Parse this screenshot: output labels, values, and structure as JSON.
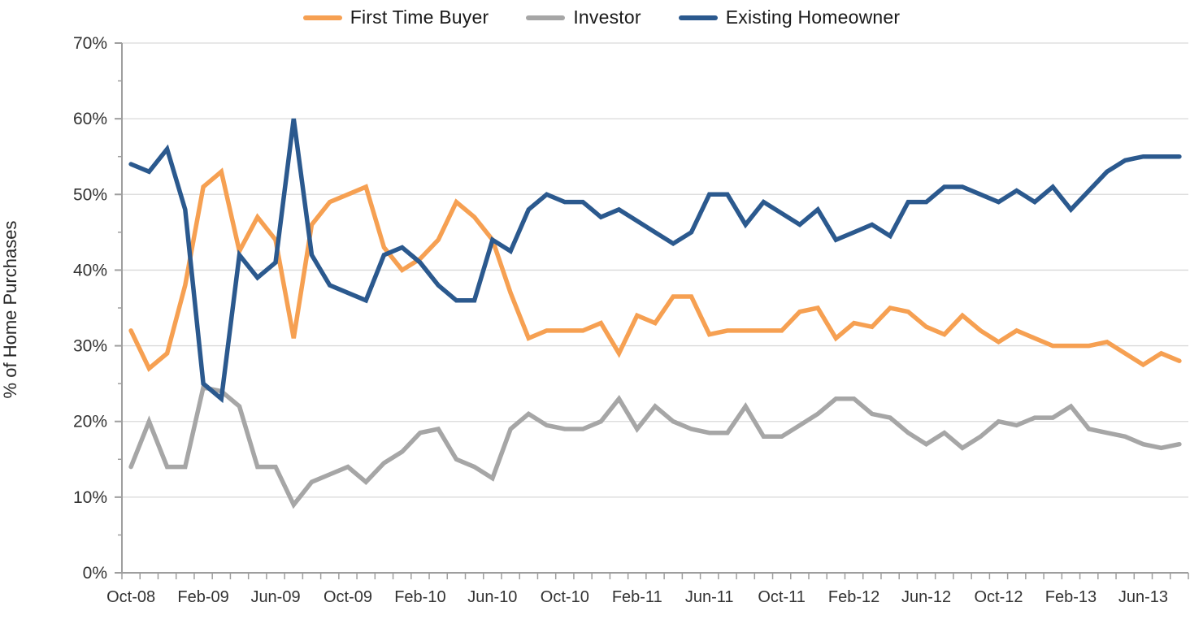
{
  "page": {
    "background": "#ffffff"
  },
  "y_axis_title": "% of Home Purchases",
  "chart_data": {
    "type": "line",
    "title": "",
    "xlabel": "",
    "ylabel": "% of Home Purchases",
    "ylim": [
      0,
      70
    ],
    "grid": "horizontal-only",
    "legend_position": "top-center",
    "gridline_color": "#D9D9D9",
    "axis_color": "#9E9E9E",
    "tick_label_color": "#333333",
    "y_tick_labels": [
      "0%",
      "10%",
      "20%",
      "30%",
      "40%",
      "50%",
      "60%",
      "70%"
    ],
    "x_tick_label_every": 4,
    "x_tick_labels_visible": [
      "Oct-08",
      "Feb-09",
      "Jun-09",
      "Oct-09",
      "Feb-10",
      "Jun-10",
      "Oct-10",
      "Feb-11",
      "Jun-11",
      "Oct-11",
      "Feb-12",
      "Jun-12",
      "Oct-12",
      "Feb-13",
      "Jun-13"
    ],
    "categories": [
      "Oct-08",
      "Nov-08",
      "Dec-08",
      "Jan-09",
      "Feb-09",
      "Mar-09",
      "Apr-09",
      "May-09",
      "Jun-09",
      "Jul-09",
      "Aug-09",
      "Sep-09",
      "Oct-09",
      "Nov-09",
      "Dec-09",
      "Jan-10",
      "Feb-10",
      "Mar-10",
      "Apr-10",
      "May-10",
      "Jun-10",
      "Jul-10",
      "Aug-10",
      "Sep-10",
      "Oct-10",
      "Nov-10",
      "Dec-10",
      "Jan-11",
      "Feb-11",
      "Mar-11",
      "Apr-11",
      "May-11",
      "Jun-11",
      "Jul-11",
      "Aug-11",
      "Sep-11",
      "Oct-11",
      "Nov-11",
      "Dec-11",
      "Jan-12",
      "Feb-12",
      "Mar-12",
      "Apr-12",
      "May-12",
      "Jun-12",
      "Jul-12",
      "Aug-12",
      "Sep-12",
      "Oct-12",
      "Nov-12",
      "Dec-12",
      "Jan-13",
      "Feb-13",
      "Mar-13",
      "Apr-13",
      "May-13",
      "Jun-13",
      "Jul-13",
      "Aug-13"
    ],
    "series": [
      {
        "name": "First Time Buyer",
        "color": "#F6A052",
        "values": [
          32,
          27,
          29,
          38,
          51,
          53,
          42.5,
          47,
          44,
          31,
          46,
          49,
          50,
          51,
          43,
          40,
          41.5,
          44,
          49,
          47,
          44,
          37,
          31,
          32,
          32,
          32,
          33,
          29,
          34,
          33,
          36.5,
          36.5,
          31.5,
          32,
          32,
          32,
          32,
          34.5,
          35,
          31,
          33,
          32.5,
          35,
          34.5,
          32.5,
          31.5,
          34,
          32,
          30.5,
          32,
          31,
          30,
          30,
          30,
          30.5,
          29,
          27.5,
          29,
          28
        ]
      },
      {
        "name": "Investor",
        "color": "#A6A6A6",
        "values": [
          14,
          20,
          14,
          14,
          24.5,
          24,
          22,
          14,
          14,
          9,
          12,
          13,
          14,
          12,
          14.5,
          16,
          18.5,
          19,
          15,
          14,
          12.5,
          19,
          21,
          19.5,
          19,
          19,
          20,
          23,
          19,
          22,
          20,
          19,
          18.5,
          18.5,
          22,
          18,
          18,
          19.5,
          21,
          23,
          23,
          21,
          20.5,
          18.5,
          17,
          18.5,
          16.5,
          18,
          20,
          19.5,
          20.5,
          20.5,
          22,
          19,
          18.5,
          18,
          17,
          16.5,
          17
        ]
      },
      {
        "name": "Existing Homeowner",
        "color": "#2B598E",
        "values": [
          54,
          53,
          56,
          48,
          25,
          23,
          42,
          39,
          41,
          60,
          42,
          38,
          37,
          36,
          42,
          43,
          41,
          38,
          36,
          36,
          44,
          42.5,
          48,
          50,
          49,
          49,
          47,
          48,
          46.5,
          45,
          43.5,
          45,
          50,
          50,
          46,
          49,
          47.5,
          46,
          48,
          44,
          45,
          46,
          44.5,
          49,
          49,
          51,
          51,
          50,
          49,
          50.5,
          49,
          51,
          48,
          50.5,
          53,
          54.5,
          55,
          55,
          55
        ]
      }
    ]
  }
}
